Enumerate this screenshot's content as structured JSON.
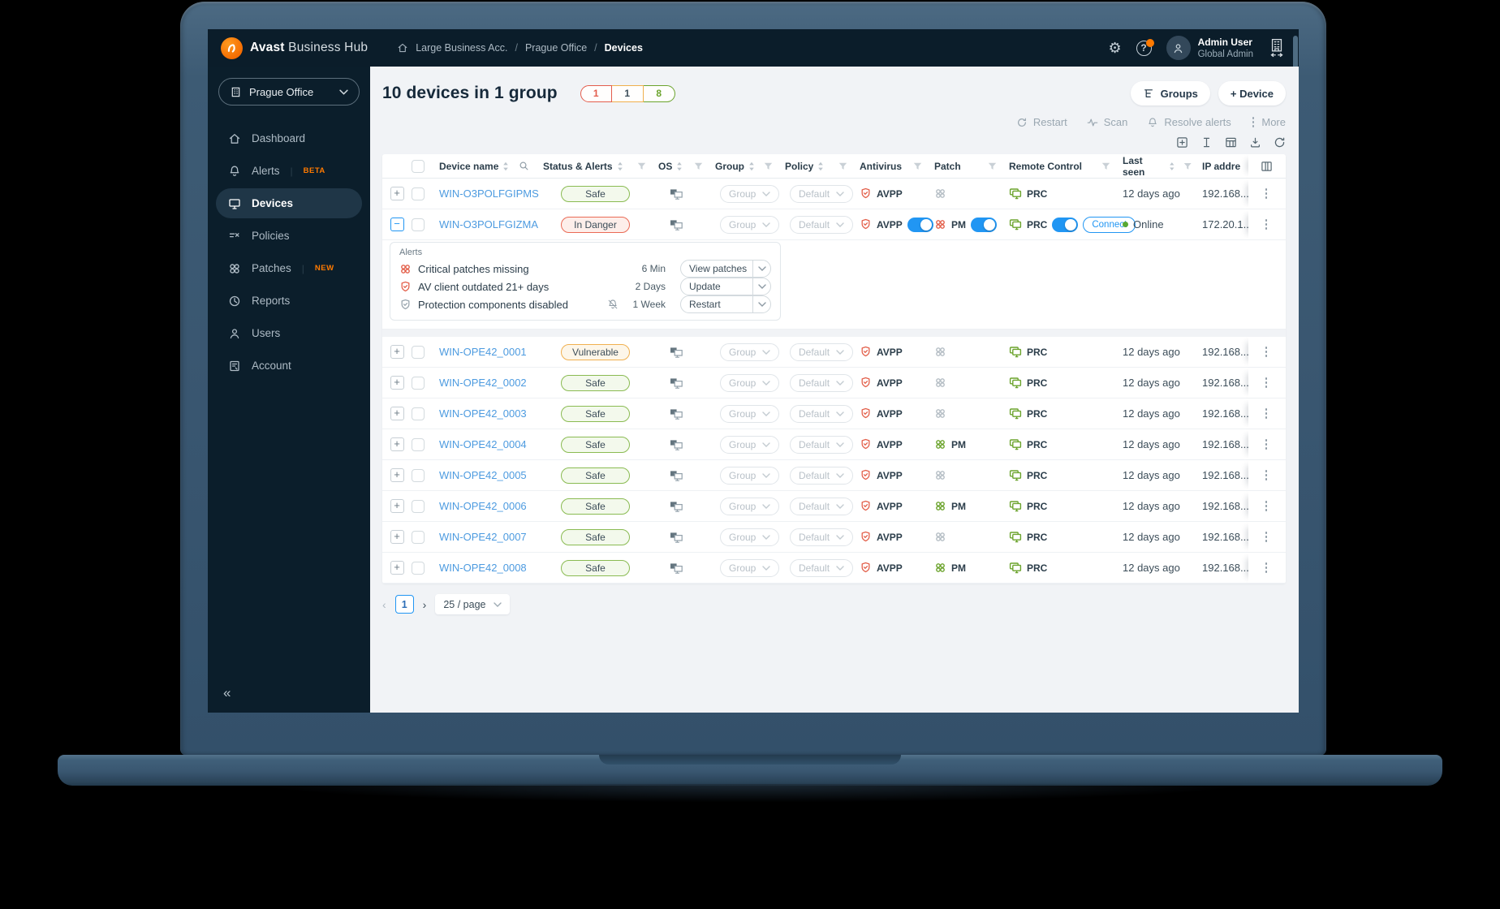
{
  "colors": {
    "brand_orange": "#f46a00",
    "toggle_blue": "#2196f3",
    "safe_green": "#6ba32c",
    "warn_amber": "#f0b04d",
    "danger_red": "#e35d4d",
    "link_blue": "#4d9be0"
  },
  "header": {
    "brand_bold": "Avast",
    "brand_regular": "Business Hub",
    "breadcrumb": [
      "Large Business Acc.",
      "Prague Office",
      "Devices"
    ],
    "user_name": "Admin User",
    "user_role": "Global Admin"
  },
  "sidebar": {
    "org_selector": "Prague Office",
    "items": [
      {
        "label": "Dashboard"
      },
      {
        "label": "Alerts",
        "badge": "BETA"
      },
      {
        "label": "Devices"
      },
      {
        "label": "Policies"
      },
      {
        "label": "Patches",
        "badge": "NEW"
      },
      {
        "label": "Reports"
      },
      {
        "label": "Users"
      },
      {
        "label": "Account"
      }
    ]
  },
  "page": {
    "title": "10 devices in 1 group",
    "badges": [
      {
        "value": "1",
        "color": "#e35d4d"
      },
      {
        "value": "1",
        "color": "#f0b04d",
        "text_color": "#3c4d59"
      },
      {
        "value": "8",
        "color": "#6ba32c"
      }
    ],
    "buttons": {
      "groups": "Groups",
      "device": "+  Device"
    },
    "bulk_actions": {
      "restart": "Restart",
      "scan": "Scan",
      "resolve": "Resolve alerts",
      "more": "More"
    }
  },
  "table": {
    "headers": {
      "device_name": "Device name",
      "status": "Status & Alerts",
      "os": "OS",
      "group": "Group",
      "policy": "Policy",
      "antivirus": "Antivirus",
      "patch": "Patch",
      "remote": "Remote Control",
      "last_seen": "Last seen",
      "ip": "IP addre"
    },
    "rows": [
      {
        "name": "WIN-O3POLFGIPMS",
        "status": "Safe",
        "status_type": "safe",
        "group": "Group",
        "policy": "Default",
        "av": "AVPP",
        "av_toggle": false,
        "patch_style": "gray",
        "patch_label": "",
        "patch_toggle": false,
        "rc": "PRC",
        "rc_toggle": false,
        "connect": "",
        "last_seen": "12 days ago",
        "online": false,
        "ip": "192.168...",
        "expander": "+",
        "expanded": false
      },
      {
        "name": "WIN-O3POLFGIZMA",
        "status": "In Danger",
        "status_type": "danger",
        "group": "Group",
        "policy": "Default",
        "av": "AVPP",
        "av_toggle": true,
        "patch_style": "red",
        "patch_label": "PM",
        "patch_toggle": true,
        "rc": "PRC",
        "rc_toggle": true,
        "connect": "Connect",
        "last_seen": "Online",
        "online": true,
        "ip": "172.20.1...",
        "expander": "−",
        "expanded": true
      },
      {
        "name": "WIN-OPE42_0001",
        "status": "Vulnerable",
        "status_type": "warn",
        "group": "Group",
        "policy": "Default",
        "av": "AVPP",
        "av_toggle": false,
        "patch_style": "gray",
        "patch_label": "",
        "patch_toggle": false,
        "rc": "PRC",
        "rc_toggle": false,
        "connect": "",
        "last_seen": "12 days ago",
        "online": false,
        "ip": "192.168...",
        "expander": "+",
        "expanded": false
      },
      {
        "name": "WIN-OPE42_0002",
        "status": "Safe",
        "status_type": "safe",
        "group": "Group",
        "policy": "Default",
        "av": "AVPP",
        "av_toggle": false,
        "patch_style": "gray",
        "patch_label": "",
        "patch_toggle": false,
        "rc": "PRC",
        "rc_toggle": false,
        "connect": "",
        "last_seen": "12 days ago",
        "online": false,
        "ip": "192.168...",
        "expander": "+",
        "expanded": false
      },
      {
        "name": "WIN-OPE42_0003",
        "status": "Safe",
        "status_type": "safe",
        "group": "Group",
        "policy": "Default",
        "av": "AVPP",
        "av_toggle": false,
        "patch_style": "gray",
        "patch_label": "",
        "patch_toggle": false,
        "rc": "PRC",
        "rc_toggle": false,
        "connect": "",
        "last_seen": "12 days ago",
        "online": false,
        "ip": "192.168...",
        "expander": "+",
        "expanded": false
      },
      {
        "name": "WIN-OPE42_0004",
        "status": "Safe",
        "status_type": "safe",
        "group": "Group",
        "policy": "Default",
        "av": "AVPP",
        "av_toggle": false,
        "patch_style": "green",
        "patch_label": "PM",
        "patch_toggle": false,
        "rc": "PRC",
        "rc_toggle": false,
        "connect": "",
        "last_seen": "12 days ago",
        "online": false,
        "ip": "192.168...",
        "expander": "+",
        "expanded": false
      },
      {
        "name": "WIN-OPE42_0005",
        "status": "Safe",
        "status_type": "safe",
        "group": "Group",
        "policy": "Default",
        "av": "AVPP",
        "av_toggle": false,
        "patch_style": "gray",
        "patch_label": "",
        "patch_toggle": false,
        "rc": "PRC",
        "rc_toggle": false,
        "connect": "",
        "last_seen": "12 days ago",
        "online": false,
        "ip": "192.168...",
        "expander": "+",
        "expanded": false
      },
      {
        "name": "WIN-OPE42_0006",
        "status": "Safe",
        "status_type": "safe",
        "group": "Group",
        "policy": "Default",
        "av": "AVPP",
        "av_toggle": false,
        "patch_style": "green",
        "patch_label": "PM",
        "patch_toggle": false,
        "rc": "PRC",
        "rc_toggle": false,
        "connect": "",
        "last_seen": "12 days ago",
        "online": false,
        "ip": "192.168...",
        "expander": "+",
        "expanded": false
      },
      {
        "name": "WIN-OPE42_0007",
        "status": "Safe",
        "status_type": "safe",
        "group": "Group",
        "policy": "Default",
        "av": "AVPP",
        "av_toggle": false,
        "patch_style": "gray",
        "patch_label": "",
        "patch_toggle": false,
        "rc": "PRC",
        "rc_toggle": false,
        "connect": "",
        "last_seen": "12 days ago",
        "online": false,
        "ip": "192.168...",
        "expander": "+",
        "expanded": false
      },
      {
        "name": "WIN-OPE42_0008",
        "status": "Safe",
        "status_type": "safe",
        "group": "Group",
        "policy": "Default",
        "av": "AVPP",
        "av_toggle": false,
        "patch_style": "green",
        "patch_label": "PM",
        "patch_toggle": false,
        "rc": "PRC",
        "rc_toggle": false,
        "connect": "",
        "last_seen": "12 days ago",
        "online": false,
        "ip": "192.168...",
        "expander": "+",
        "expanded": false
      }
    ]
  },
  "alerts_panel": {
    "title": "Alerts",
    "items": [
      {
        "icon": "patch-red",
        "text": "Critical patches missing",
        "age": "6 Min",
        "action": "View patches",
        "muted_bell": false
      },
      {
        "icon": "shield-red",
        "text": "AV client outdated 21+ days",
        "age": "2 Days",
        "action": "Update",
        "muted_bell": false
      },
      {
        "icon": "shield-gray",
        "text": "Protection components disabled",
        "age": "1 Week",
        "action": "Restart",
        "muted_bell": true
      }
    ]
  },
  "pagination": {
    "page": "1",
    "size": "25 / page"
  }
}
